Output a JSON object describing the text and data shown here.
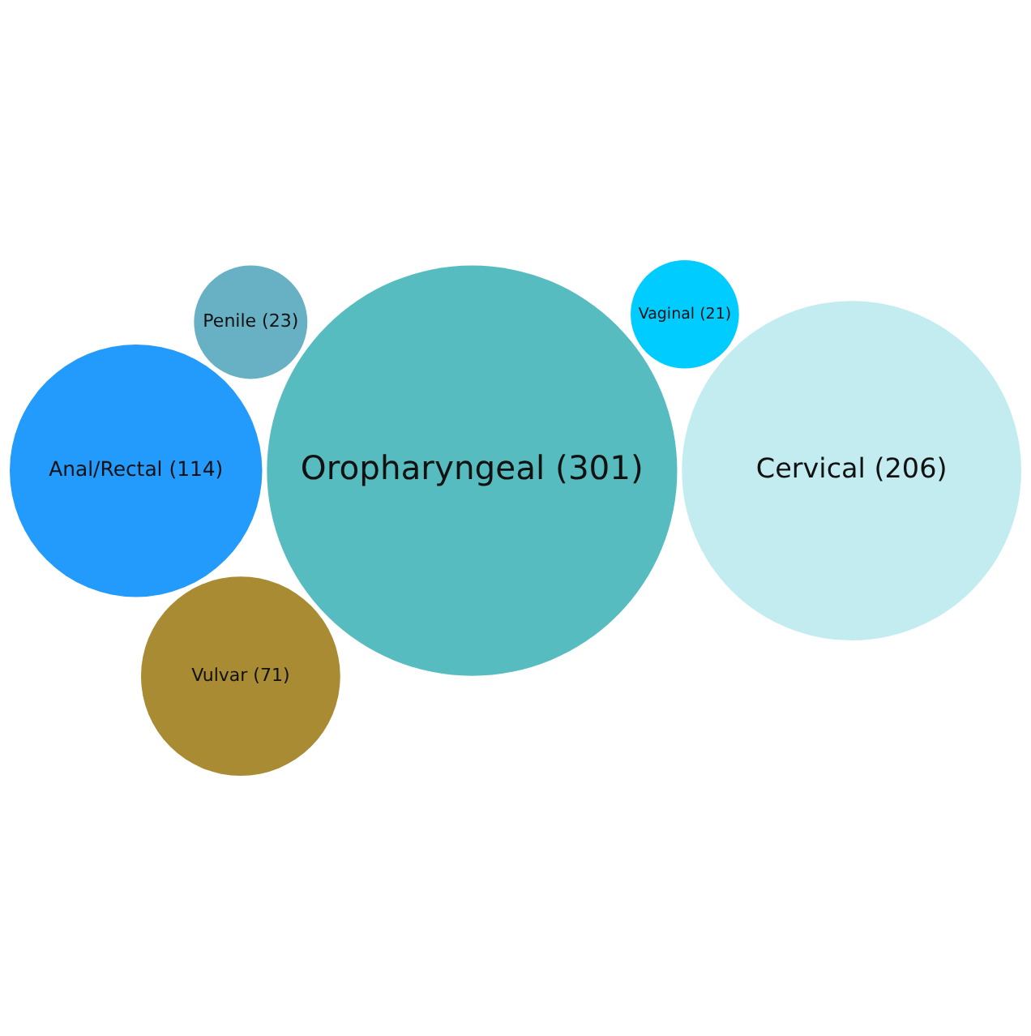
{
  "chart_data": {
    "type": "other",
    "categories": [
      "Oropharyngeal",
      "Cervical",
      "Anal/Rectal",
      "Vulvar",
      "Penile",
      "Vaginal"
    ],
    "values": [
      301,
      206,
      114,
      71,
      23,
      21
    ],
    "value_labels": [
      "(301)",
      "(206)",
      "(114)",
      "(71)",
      "(23)",
      "(21)"
    ],
    "colors": [
      "#57bcbf",
      "#c3ecf1",
      "#239bfd",
      "#a88b33",
      "#68b1c4",
      "#00ccff"
    ]
  }
}
